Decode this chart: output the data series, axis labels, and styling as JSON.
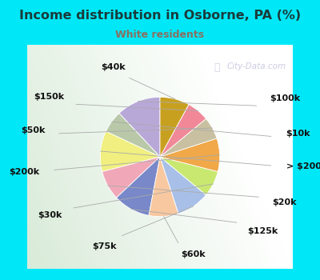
{
  "title": "Income distribution in Osborne, PA (%)",
  "subtitle": "White residents",
  "title_color": "#1a3a3a",
  "subtitle_color": "#8a7060",
  "bg_color": "#00e8f8",
  "watermark": "City-Data.com",
  "labels": [
    "$100k",
    "$10k",
    "> $200k",
    "$20k",
    "$125k",
    "$60k",
    "$75k",
    "$30k",
    "$200k",
    "$50k",
    "$150k",
    "$40k"
  ],
  "values": [
    12,
    6,
    11,
    8,
    10,
    8,
    9,
    7,
    9,
    6,
    6,
    8
  ],
  "colors": [
    "#b8a8d8",
    "#b8c8a8",
    "#f0ef80",
    "#f0a8b8",
    "#7888c8",
    "#f8c8a0",
    "#a8c0e8",
    "#c8e870",
    "#f0a848",
    "#c8c0a0",
    "#f08898",
    "#c8a020"
  ],
  "startangle": 90,
  "label_fontsize": 8,
  "title_fontsize": 11.5,
  "subtitle_fontsize": 9
}
